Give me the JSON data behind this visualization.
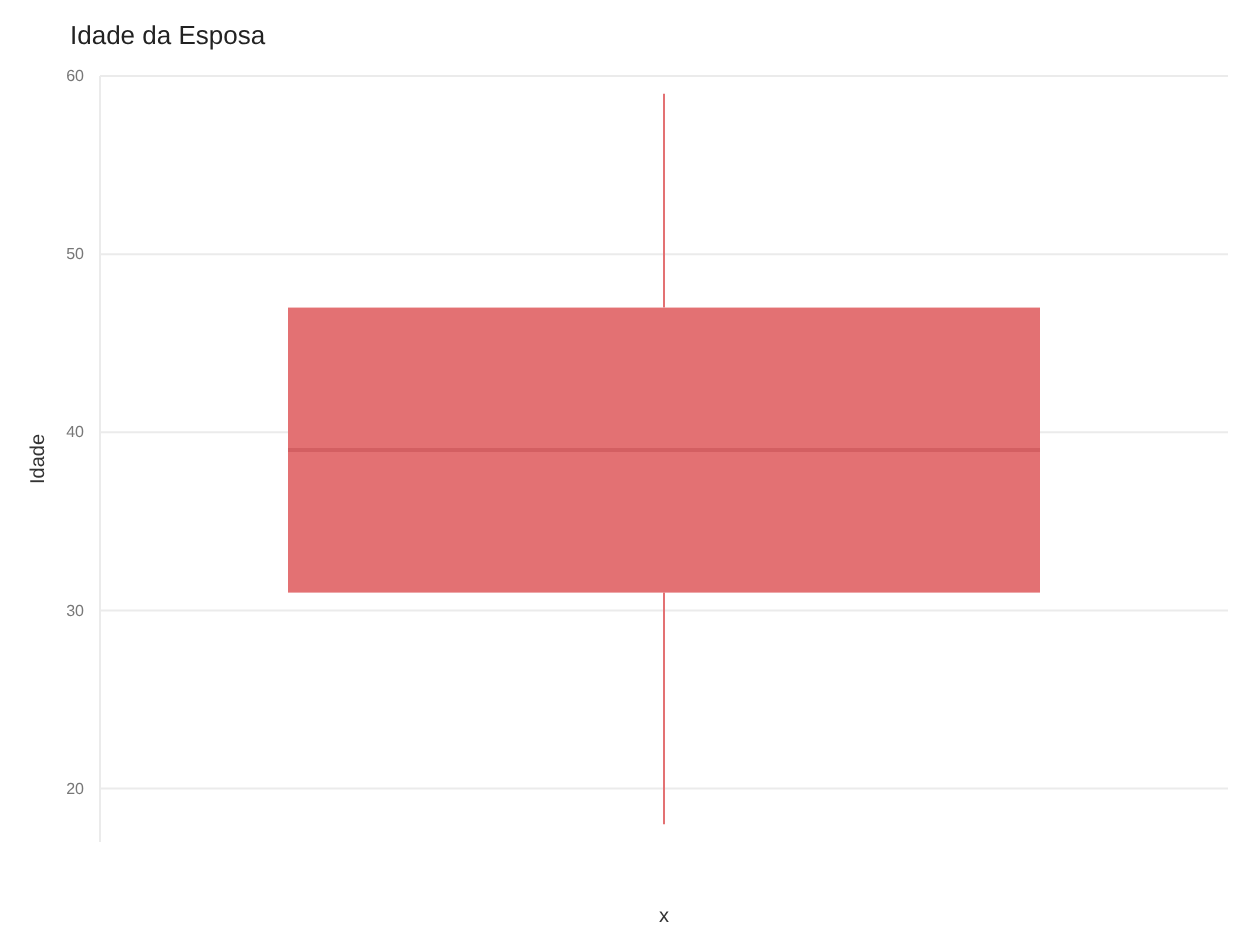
{
  "chart_data": {
    "type": "box",
    "title": "Idade da Esposa",
    "xlabel": "x",
    "ylabel": "Idade",
    "categories": [
      null
    ],
    "boxes": [
      {
        "low": 18,
        "q1": 31,
        "median": 39,
        "q3": 47,
        "high": 59
      }
    ],
    "color": "#e37173",
    "ylim": [
      17,
      60
    ],
    "yticks": [
      20,
      30,
      40,
      50,
      60
    ],
    "grid": "y",
    "tick_labels": "y"
  }
}
